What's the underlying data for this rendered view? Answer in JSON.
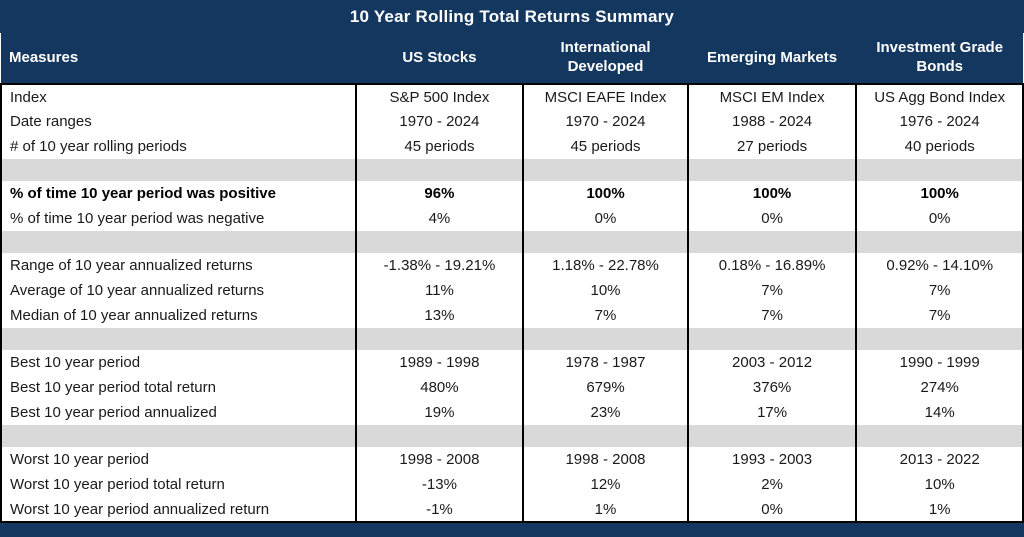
{
  "colors": {
    "header_navy": "#14375F",
    "spacer_gray": "#D9D9D9",
    "border_black": "#000000",
    "header_text": "#FFFFFF",
    "body_text": "#1A1A1A"
  },
  "chart_data": {
    "type": "table",
    "title": "10 Year Rolling Total Returns Summary",
    "columns": [
      "Measures",
      "US Stocks",
      "International Developed",
      "Emerging Markets",
      "Investment Grade Bonds"
    ],
    "rows": [
      {
        "type": "data",
        "bold": false,
        "cells": [
          "Index",
          "S&P 500 Index",
          "MSCI EAFE Index",
          "MSCI EM Index",
          "US Agg Bond Index"
        ]
      },
      {
        "type": "data",
        "bold": false,
        "cells": [
          "Date ranges",
          "1970 - 2024",
          "1970 - 2024",
          "1988 - 2024",
          "1976 - 2024"
        ]
      },
      {
        "type": "data",
        "bold": false,
        "cells": [
          "# of 10 year rolling periods",
          "45 periods",
          "45 periods",
          "27 periods",
          "40 periods"
        ]
      },
      {
        "type": "spacer"
      },
      {
        "type": "data",
        "bold": true,
        "cells": [
          "% of time 10 year period was positive",
          "96%",
          "100%",
          "100%",
          "100%"
        ]
      },
      {
        "type": "data",
        "bold": false,
        "cells": [
          "% of time 10 year period was negative",
          "4%",
          "0%",
          "0%",
          "0%"
        ]
      },
      {
        "type": "spacer"
      },
      {
        "type": "data",
        "bold": false,
        "cells": [
          "Range of 10 year annualized returns",
          "-1.38% - 19.21%",
          "1.18% - 22.78%",
          "0.18% - 16.89%",
          "0.92% - 14.10%"
        ]
      },
      {
        "type": "data",
        "bold": false,
        "cells": [
          "Average of 10 year annualized returns",
          "11%",
          "10%",
          "7%",
          "7%"
        ]
      },
      {
        "type": "data",
        "bold": false,
        "cells": [
          "Median of 10 year annualized returns",
          "13%",
          "7%",
          "7%",
          "7%"
        ]
      },
      {
        "type": "spacer"
      },
      {
        "type": "data",
        "bold": false,
        "cells": [
          "Best 10 year period",
          "1989 - 1998",
          "1978 - 1987",
          "2003 - 2012",
          "1990 - 1999"
        ]
      },
      {
        "type": "data",
        "bold": false,
        "cells": [
          "Best 10 year period total return",
          "480%",
          "679%",
          "376%",
          "274%"
        ]
      },
      {
        "type": "data",
        "bold": false,
        "cells": [
          "Best 10 year period annualized",
          "19%",
          "23%",
          "17%",
          "14%"
        ]
      },
      {
        "type": "spacer"
      },
      {
        "type": "data",
        "bold": false,
        "cells": [
          "Worst 10 year period",
          "1998 - 2008",
          "1998 - 2008",
          "1993 - 2003",
          "2013 - 2022"
        ]
      },
      {
        "type": "data",
        "bold": false,
        "cells": [
          "Worst 10 year period total return",
          "-13%",
          "12%",
          "2%",
          "10%"
        ]
      },
      {
        "type": "data",
        "bold": false,
        "cells": [
          "Worst 10 year period annualized return",
          "-1%",
          "1%",
          "0%",
          "1%"
        ]
      }
    ]
  }
}
